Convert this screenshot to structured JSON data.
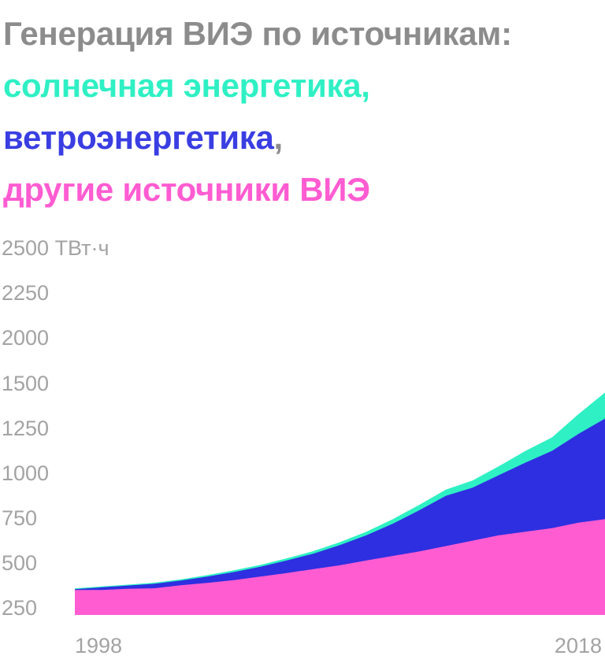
{
  "chart_data": {
    "type": "area",
    "stacked": true,
    "title_parts": [
      {
        "text": "Генерация ВИЭ по источникам: ",
        "color": "#8c8c8c"
      },
      {
        "text": "солнечная энергетика, ",
        "color": "#2ff0c4"
      },
      {
        "text": "ветроэнергетика",
        "color": "#3a3ee2"
      },
      {
        "text": ", ",
        "color": "#8c8c8c"
      },
      {
        "text": "другие источники ВИЭ",
        "color": "#ff5cd2"
      }
    ],
    "y_unit_label": "ТВт·ч",
    "y_tick_labels": [
      "2500",
      "2250",
      "2000",
      "1500",
      "1250",
      "1000",
      "750",
      "500",
      "250"
    ],
    "x_tick_labels": [
      "1998",
      "2018"
    ],
    "x": [
      1998,
      1999,
      2000,
      2001,
      2002,
      2003,
      2004,
      2005,
      2006,
      2007,
      2008,
      2009,
      2010,
      2011,
      2012,
      2013,
      2014,
      2015,
      2016,
      2017,
      2018
    ],
    "series": [
      {
        "key": "other",
        "color": "#ff5cd2",
        "values": [
          345,
          345,
          352,
          355,
          372,
          385,
          400,
          420,
          440,
          462,
          483,
          510,
          535,
          560,
          590,
          620,
          650,
          670,
          690,
          720,
          740
        ]
      },
      {
        "key": "wind",
        "color": "#2e2fe0",
        "values": [
          350,
          360,
          370,
          380,
          398,
          420,
          445,
          475,
          510,
          548,
          595,
          650,
          715,
          790,
          870,
          915,
          985,
          1055,
          1120,
          1215,
          1300
        ]
      },
      {
        "key": "solar",
        "color": "#2ff0c4",
        "values": [
          355,
          365,
          375,
          386,
          405,
          428,
          455,
          485,
          522,
          562,
          612,
          670,
          740,
          820,
          905,
          955,
          1035,
          1120,
          1195,
          1325,
          1445
        ]
      }
    ]
  }
}
